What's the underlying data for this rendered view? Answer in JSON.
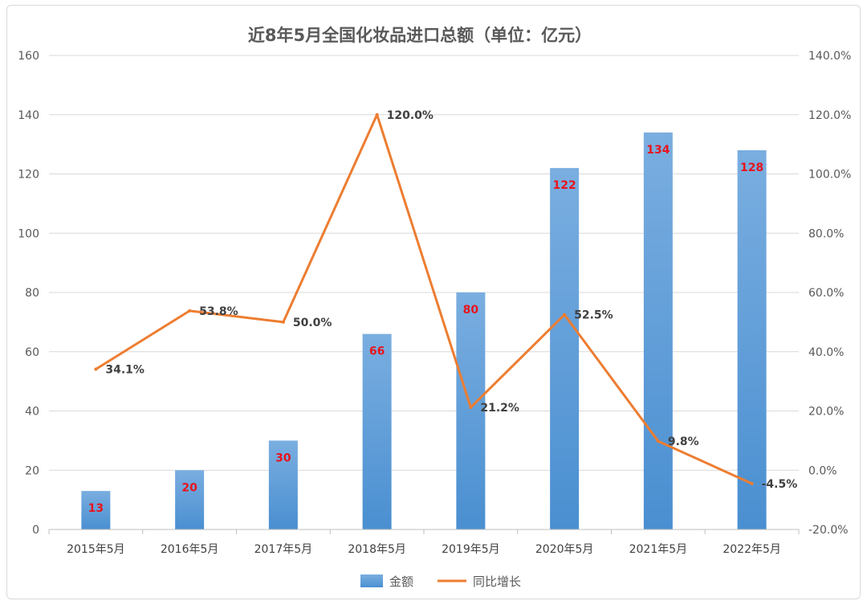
{
  "colors": {
    "bar_top": "#7aaee0",
    "bar_bottom": "#4a8fd1",
    "line": "#ed7d31",
    "grid": "#d9d9d9",
    "bar_label": "#e8141c",
    "line_label": "#404040"
  },
  "chart_data": {
    "type": "bar",
    "title": "近8年5月全国化妆品进口总额（单位：亿元）",
    "categories": [
      "2015年5月",
      "2016年5月",
      "2017年5月",
      "2018年5月",
      "2019年5月",
      "2020年5月",
      "2021年5月",
      "2022年5月"
    ],
    "series": [
      {
        "name": "金额",
        "type": "bar",
        "axis": "left",
        "values": [
          13,
          20,
          30,
          66,
          80,
          122,
          134,
          128
        ],
        "labels": [
          "13",
          "20",
          "30",
          "66",
          "80",
          "122",
          "134",
          "128"
        ]
      },
      {
        "name": "同比增长",
        "type": "line",
        "axis": "right",
        "values": [
          34.1,
          53.8,
          50.0,
          120.0,
          21.2,
          52.5,
          9.8,
          -4.5
        ],
        "labels": [
          "34.1%",
          "53.8%",
          "50.0%",
          "120.0%",
          "21.2%",
          "52.5%",
          "9.8%",
          "-4.5%"
        ]
      }
    ],
    "y_left": {
      "min": 0,
      "max": 160,
      "ticks": [
        "0",
        "20",
        "40",
        "60",
        "80",
        "100",
        "120",
        "140",
        "160"
      ]
    },
    "y_right": {
      "min": -20,
      "max": 140,
      "ticks": [
        "-20.0%",
        "0.0%",
        "20.0%",
        "40.0%",
        "60.0%",
        "80.0%",
        "100.0%",
        "120.0%",
        "140.0%"
      ]
    },
    "grid": true,
    "legend_position": "bottom"
  }
}
